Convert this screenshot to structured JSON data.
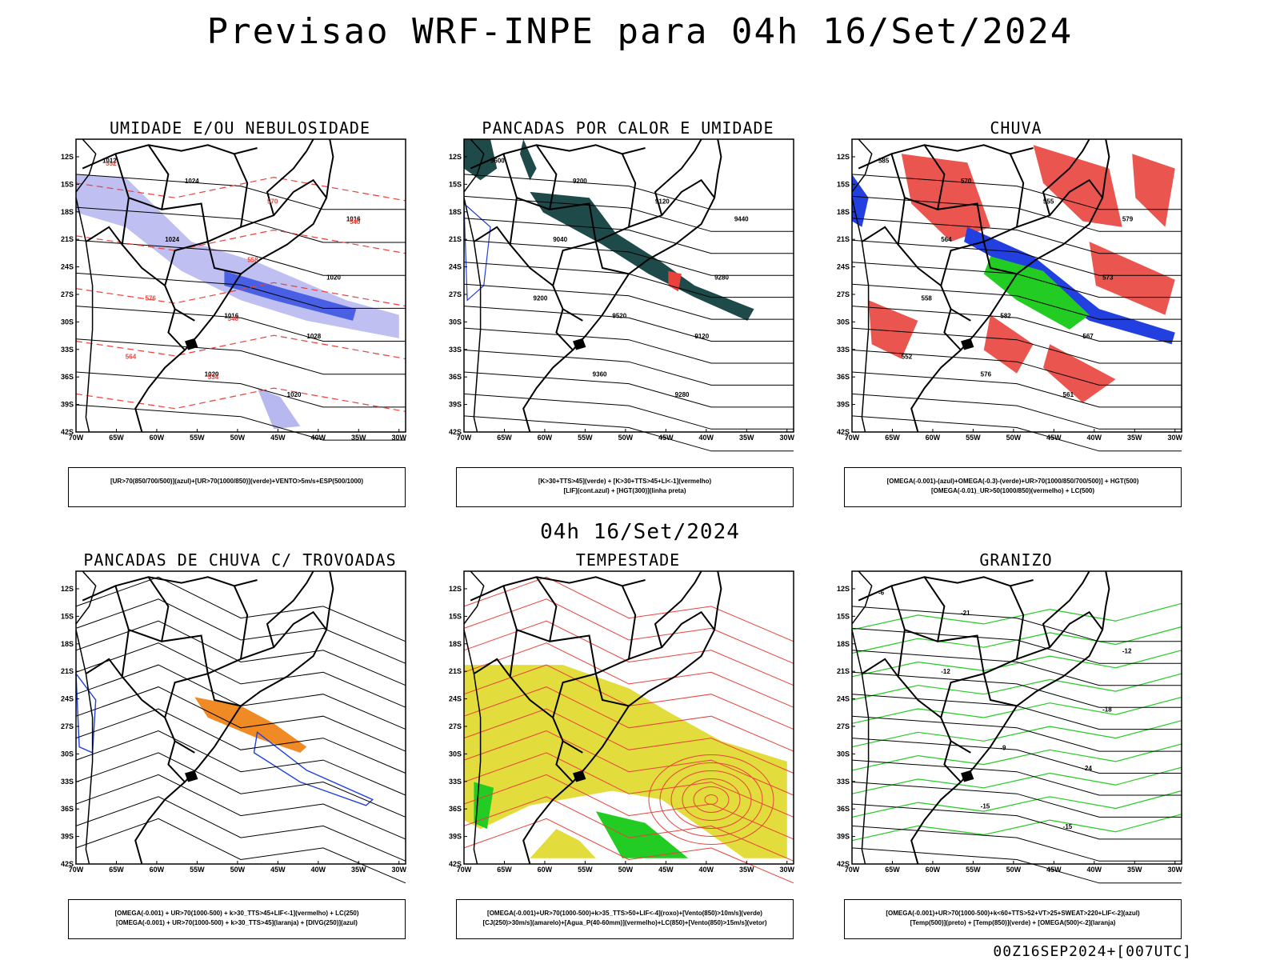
{
  "header": {
    "title": "Previsao WRF-INPE  para 04h 16/Set/2024",
    "mid_title": "04h 16/Set/2024",
    "stamp": "00Z16SEP2024+[007UTC]"
  },
  "axes": {
    "lat_labels": [
      "12S",
      "15S",
      "18S",
      "21S",
      "24S",
      "27S",
      "30S",
      "33S",
      "36S",
      "39S",
      "42S"
    ],
    "lon_labels": [
      "70W",
      "65W",
      "60W",
      "55W",
      "50W",
      "45W",
      "40W",
      "35W",
      "30W"
    ]
  },
  "panels": [
    {
      "title": "UMIDADE E/OU NEBULOSIDADE",
      "legend": [
        "[UR>70(850/700/500)](azul)+[UR>70(1000/850)](verde)+VENTO>5m/s+ESP(500/1000)"
      ],
      "contour_labels": [
        "1012",
        "1016",
        "1016",
        "1020",
        "1020",
        "1024",
        "1028",
        "1024",
        "1020",
        "576",
        "570",
        "564",
        "558",
        "552",
        "546",
        "540",
        "534"
      ]
    },
    {
      "title": "PANCADAS POR CALOR E UMIDADE",
      "legend": [
        "[K>30+TTS>45](verde) + [K>30+TTS>45+LI<-1](vermelho)",
        "[LIF](cont.azul) + [HGT(300)](linha preta)"
      ],
      "contour_labels": [
        "9600",
        "9520",
        "9440",
        "9360",
        "9280",
        "9200",
        "9120",
        "9040",
        "9280",
        "9200",
        "9120"
      ]
    },
    {
      "title": "CHUVA",
      "legend": [
        "[OMEGA(-0.001)-(azul)+OMEGA(-0.3)-(verde)+UR>70(1000/850/700/500)] + HGT(500)",
        "[OMEGA(-0.01)_UR>50(1000/850)(vermelho) + LC(500)"
      ],
      "contour_labels": [
        "585",
        "582",
        "579",
        "576",
        "573",
        "570",
        "567",
        "564",
        "561",
        "558",
        "555",
        "552"
      ]
    },
    {
      "title": "PANCADAS DE CHUVA C/ TROVOADAS",
      "legend": [
        "[OMEGA(-0.001) + UR>70(1000-500) + k>30_TTS>45+LIF<-1](vermelho) + LC(250)",
        "[OMEGA(-0.001) + UR>70(1000-500) + k>30_TTS>45](laranja) + [DIVG(250)](azul)"
      ],
      "contour_labels": []
    },
    {
      "title": "TEMPESTADE",
      "legend": [
        "[OMEGA(-0.001)+UR>70(1000-500)+k>35_TTS>50+LIF<-4](roxo)+[Vento(850)>10m/s](verde)",
        "[CJ(250)>30m/s](amarelo)+[Agua_P(40-60mm)](vermelho)+LC(850)+[Vento(850)>15m/s](vetor)"
      ],
      "contour_labels": []
    },
    {
      "title": "GRANIZO",
      "legend": [
        "[OMEGA(-0.001)+UR>70(1000-500)+k<60+TTS>52+VT>25+SWEAT>220+LIF<-2](azul)",
        "[Temp(500)](preto) + [Temp(850)](verde) + [OMEGA(500)<-2](laranja)"
      ],
      "contour_labels": [
        "-6",
        "-9",
        "-12",
        "-15",
        "-18",
        "-21",
        "-24",
        "-12",
        "-15"
      ]
    }
  ],
  "colors": {
    "red": "#e8423c",
    "green": "#22cc22",
    "blue": "#2240e0",
    "lavender": "#b8b8f0",
    "darkteal": "#1f4a4a",
    "yellow": "#e2dc3c",
    "orange": "#f08a24",
    "black": "#000000"
  }
}
